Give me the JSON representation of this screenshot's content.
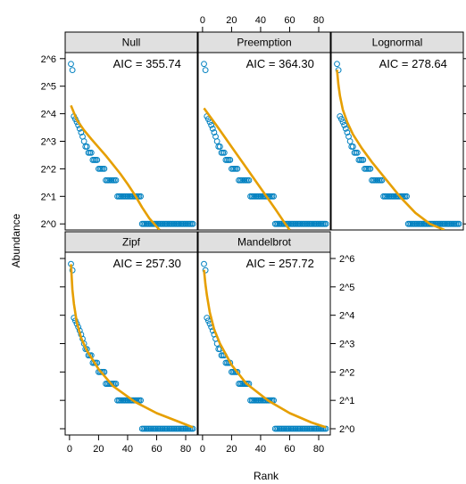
{
  "chart_data": {
    "type": "scatter",
    "xlabel": "Rank",
    "ylabel": "Abundance",
    "xlim": [
      -3,
      88
    ],
    "ylim": [
      -0.22,
      6.22
    ],
    "y_scale": "log2",
    "x_ticks": [
      "0",
      "20",
      "40",
      "60",
      "80"
    ],
    "y_ticks": [
      "2^0",
      "2^1",
      "2^2",
      "2^3",
      "2^4",
      "2^5",
      "2^6"
    ],
    "colors": {
      "points": "#0080C0",
      "fit": "#E69F00",
      "strip": "#E0E0E0"
    },
    "observed_abundance": [
      56,
      48,
      15,
      14,
      13,
      12,
      11,
      10,
      9,
      8,
      7,
      7,
      6,
      6,
      6,
      5,
      5,
      5,
      5,
      4,
      4,
      4,
      4,
      4,
      3,
      3,
      3,
      3,
      3,
      3,
      3,
      3,
      2,
      2,
      2,
      2,
      2,
      2,
      2,
      2,
      2,
      2,
      2,
      2,
      2,
      2,
      2,
      2,
      2,
      1,
      1,
      1,
      1,
      1,
      1,
      1,
      1,
      1,
      1,
      1,
      1,
      1,
      1,
      1,
      1,
      1,
      1,
      1,
      1,
      1,
      1,
      1,
      1,
      1,
      1,
      1,
      1,
      1,
      1,
      1,
      1,
      1,
      1,
      1,
      1
    ],
    "panels": [
      {
        "name": "Null",
        "aic": "AIC = 355.74",
        "fitted_log2": [
          [
            1,
            4.3
          ],
          [
            5,
            3.78
          ],
          [
            10,
            3.4
          ],
          [
            15,
            3.08
          ],
          [
            20,
            2.78
          ],
          [
            25,
            2.48
          ],
          [
            30,
            2.15
          ],
          [
            35,
            1.82
          ],
          [
            40,
            1.45
          ],
          [
            45,
            1.05
          ],
          [
            50,
            0.6
          ],
          [
            55,
            0.2
          ],
          [
            60,
            -0.1
          ],
          [
            62,
            -0.22
          ]
        ]
      },
      {
        "name": "Preemption",
        "aic": "AIC = 364.30",
        "fitted_log2": [
          [
            1,
            4.2
          ],
          [
            10,
            3.55
          ],
          [
            20,
            2.8
          ],
          [
            30,
            2.05
          ],
          [
            40,
            1.3
          ],
          [
            50,
            0.55
          ],
          [
            57,
            0
          ],
          [
            60,
            -0.22
          ]
        ]
      },
      {
        "name": "Lognormal",
        "aic": "AIC = 278.64",
        "fitted_log2": [
          [
            1,
            5.6
          ],
          [
            2,
            5.05
          ],
          [
            3,
            4.65
          ],
          [
            5,
            4.15
          ],
          [
            8,
            3.7
          ],
          [
            12,
            3.25
          ],
          [
            18,
            2.75
          ],
          [
            25,
            2.25
          ],
          [
            35,
            1.6
          ],
          [
            45,
            0.95
          ],
          [
            55,
            0.4
          ],
          [
            65,
            0
          ],
          [
            75,
            -0.22
          ]
        ]
      },
      {
        "name": "Zipf",
        "aic": "AIC = 257.30",
        "fitted_log2": [
          [
            1,
            5.8
          ],
          [
            2,
            4.9
          ],
          [
            3,
            4.4
          ],
          [
            5,
            3.75
          ],
          [
            8,
            3.2
          ],
          [
            12,
            2.75
          ],
          [
            20,
            2.1
          ],
          [
            30,
            1.5
          ],
          [
            45,
            0.95
          ],
          [
            60,
            0.55
          ],
          [
            75,
            0.25
          ],
          [
            85,
            0.05
          ]
        ]
      },
      {
        "name": "Mandelbrot",
        "aic": "AIC = 257.72",
        "fitted_log2": [
          [
            1,
            5.6
          ],
          [
            2,
            5.1
          ],
          [
            3,
            4.7
          ],
          [
            5,
            4.1
          ],
          [
            8,
            3.5
          ],
          [
            12,
            3.0
          ],
          [
            20,
            2.25
          ],
          [
            30,
            1.6
          ],
          [
            45,
            1.0
          ],
          [
            60,
            0.55
          ],
          [
            75,
            0.22
          ],
          [
            85,
            0.05
          ]
        ]
      }
    ]
  }
}
